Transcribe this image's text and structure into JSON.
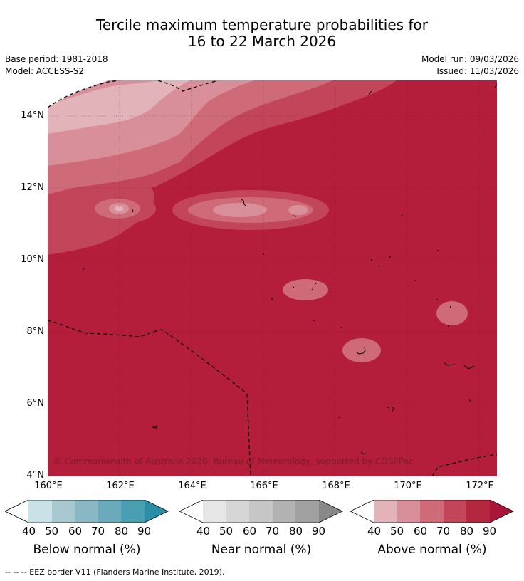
{
  "title": {
    "line1": "Tercile maximum temperature probabilities for",
    "line2": "16 to 22 March 2026"
  },
  "meta": {
    "base_period": "Base period: 1981-2018",
    "model": "Model: ACCESS-S2",
    "model_run": "Model run: 09/03/2026",
    "issued": "Issued: 11/03/2026"
  },
  "map": {
    "lat_labels": [
      "14°N",
      "12°N",
      "10°N",
      "8°N",
      "6°N",
      "4°N"
    ],
    "lon_labels": [
      "160°E",
      "162°E",
      "164°E",
      "166°E",
      "168°E",
      "170°E",
      "172°E"
    ],
    "copyright": "© Commonwealth of Australia 2026, Bureau of Meteorology, supported by COSPPac",
    "colors": {
      "above_90": "#b41e3a",
      "above_80": "#c2455a",
      "above_70": "#cf6a79",
      "above_60": "#d98f99",
      "above_50": "#e3b3ba",
      "no_data": "#ffffff"
    }
  },
  "colorbars": {
    "below": {
      "title": "Below normal (%)",
      "ticks": [
        "40",
        "50",
        "60",
        "70",
        "80",
        "90"
      ],
      "colors": [
        "#ffffff",
        "#c9e2e8",
        "#a7c8cf",
        "#89b8c4",
        "#6aaabb",
        "#4a9eb2",
        "#2a8fa6"
      ]
    },
    "near": {
      "title": "Near normal (%)",
      "ticks": [
        "40",
        "50",
        "60",
        "70",
        "80",
        "90"
      ],
      "colors": [
        "#ffffff",
        "#e6e6e6",
        "#d6d6d6",
        "#c6c6c6",
        "#b2b2b2",
        "#a0a0a0",
        "#888888"
      ]
    },
    "above": {
      "title": "Above normal (%)",
      "ticks": [
        "40",
        "50",
        "60",
        "70",
        "80",
        "90"
      ],
      "colors": [
        "#ffffff",
        "#e3b3ba",
        "#d98f99",
        "#cf6a79",
        "#c2455a",
        "#b5263f",
        "#a8173a"
      ]
    }
  },
  "footer": "--  --  -- EEZ border V11 (Flanders Marine Institute, 2019)."
}
